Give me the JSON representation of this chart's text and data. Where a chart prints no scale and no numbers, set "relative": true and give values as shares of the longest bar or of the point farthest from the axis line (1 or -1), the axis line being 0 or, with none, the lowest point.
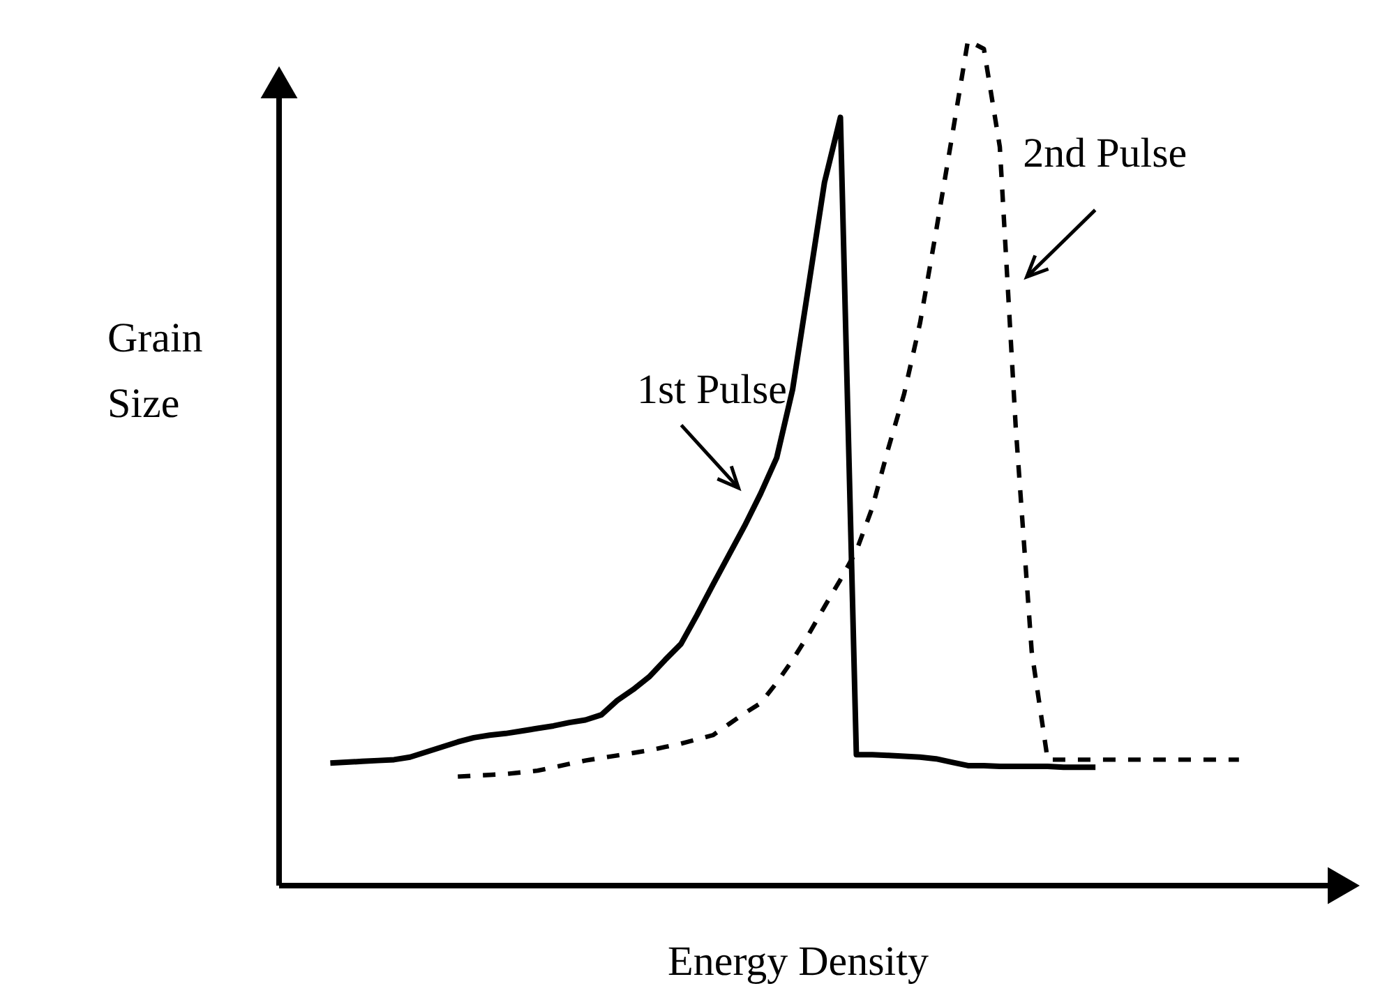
{
  "chart_data": {
    "type": "line",
    "relative": true,
    "xlabel": "Energy Density",
    "ylabel": "Grain Size",
    "categories": [
      null,
      null,
      null,
      null,
      null,
      null,
      null,
      null,
      null,
      null,
      null,
      null,
      null,
      null,
      null,
      null,
      null,
      null,
      null,
      null,
      null,
      null,
      null,
      null,
      null,
      null,
      null,
      null,
      null,
      null,
      null,
      null,
      null,
      null,
      null,
      null,
      null,
      null,
      null,
      null,
      null,
      null,
      null,
      null,
      null,
      null,
      null,
      null,
      null,
      null,
      null,
      null,
      null,
      null,
      null,
      null,
      null,
      null
    ],
    "series": [
      {
        "name": "1st Pulse",
        "color": "#000000",
        "line_style": "solid",
        "values": [
          0.145,
          0.146,
          0.147,
          0.148,
          0.149,
          0.152,
          0.158,
          0.164,
          0.17,
          0.175,
          0.178,
          0.18,
          0.183,
          0.186,
          0.189,
          0.193,
          0.196,
          0.202,
          0.219,
          0.232,
          0.247,
          0.267,
          0.286,
          0.32,
          0.356,
          0.391,
          0.426,
          0.464,
          0.506,
          0.587,
          0.709,
          0.832,
          0.909,
          0.155,
          0.155,
          0.154,
          0.153,
          0.152,
          0.15,
          0.146,
          0.142,
          0.142,
          0.141,
          0.141,
          0.141,
          0.141,
          0.14,
          0.14,
          0.14,
          null,
          null,
          null,
          null,
          null,
          null,
          null,
          null,
          null
        ]
      },
      {
        "name": "2nd Pulse",
        "color": "#000000",
        "line_style": "dashed",
        "values": [
          null,
          null,
          null,
          null,
          null,
          null,
          null,
          null,
          0.129,
          0.13,
          0.131,
          0.132,
          0.134,
          0.136,
          0.14,
          0.144,
          0.148,
          0.151,
          0.154,
          0.157,
          0.16,
          0.164,
          0.168,
          0.173,
          0.178,
          0.191,
          0.204,
          0.216,
          0.24,
          0.267,
          0.297,
          0.33,
          0.362,
          0.396,
          0.447,
          0.517,
          0.582,
          0.666,
          0.774,
          0.886,
          1,
          0.99,
          0.874,
          0.542,
          0.277,
          0.149,
          0.149,
          0.149,
          0.149,
          0.149,
          0.149,
          0.149,
          0.149,
          0.149,
          0.149,
          0.149,
          0.149,
          0.149
        ]
      }
    ]
  }
}
